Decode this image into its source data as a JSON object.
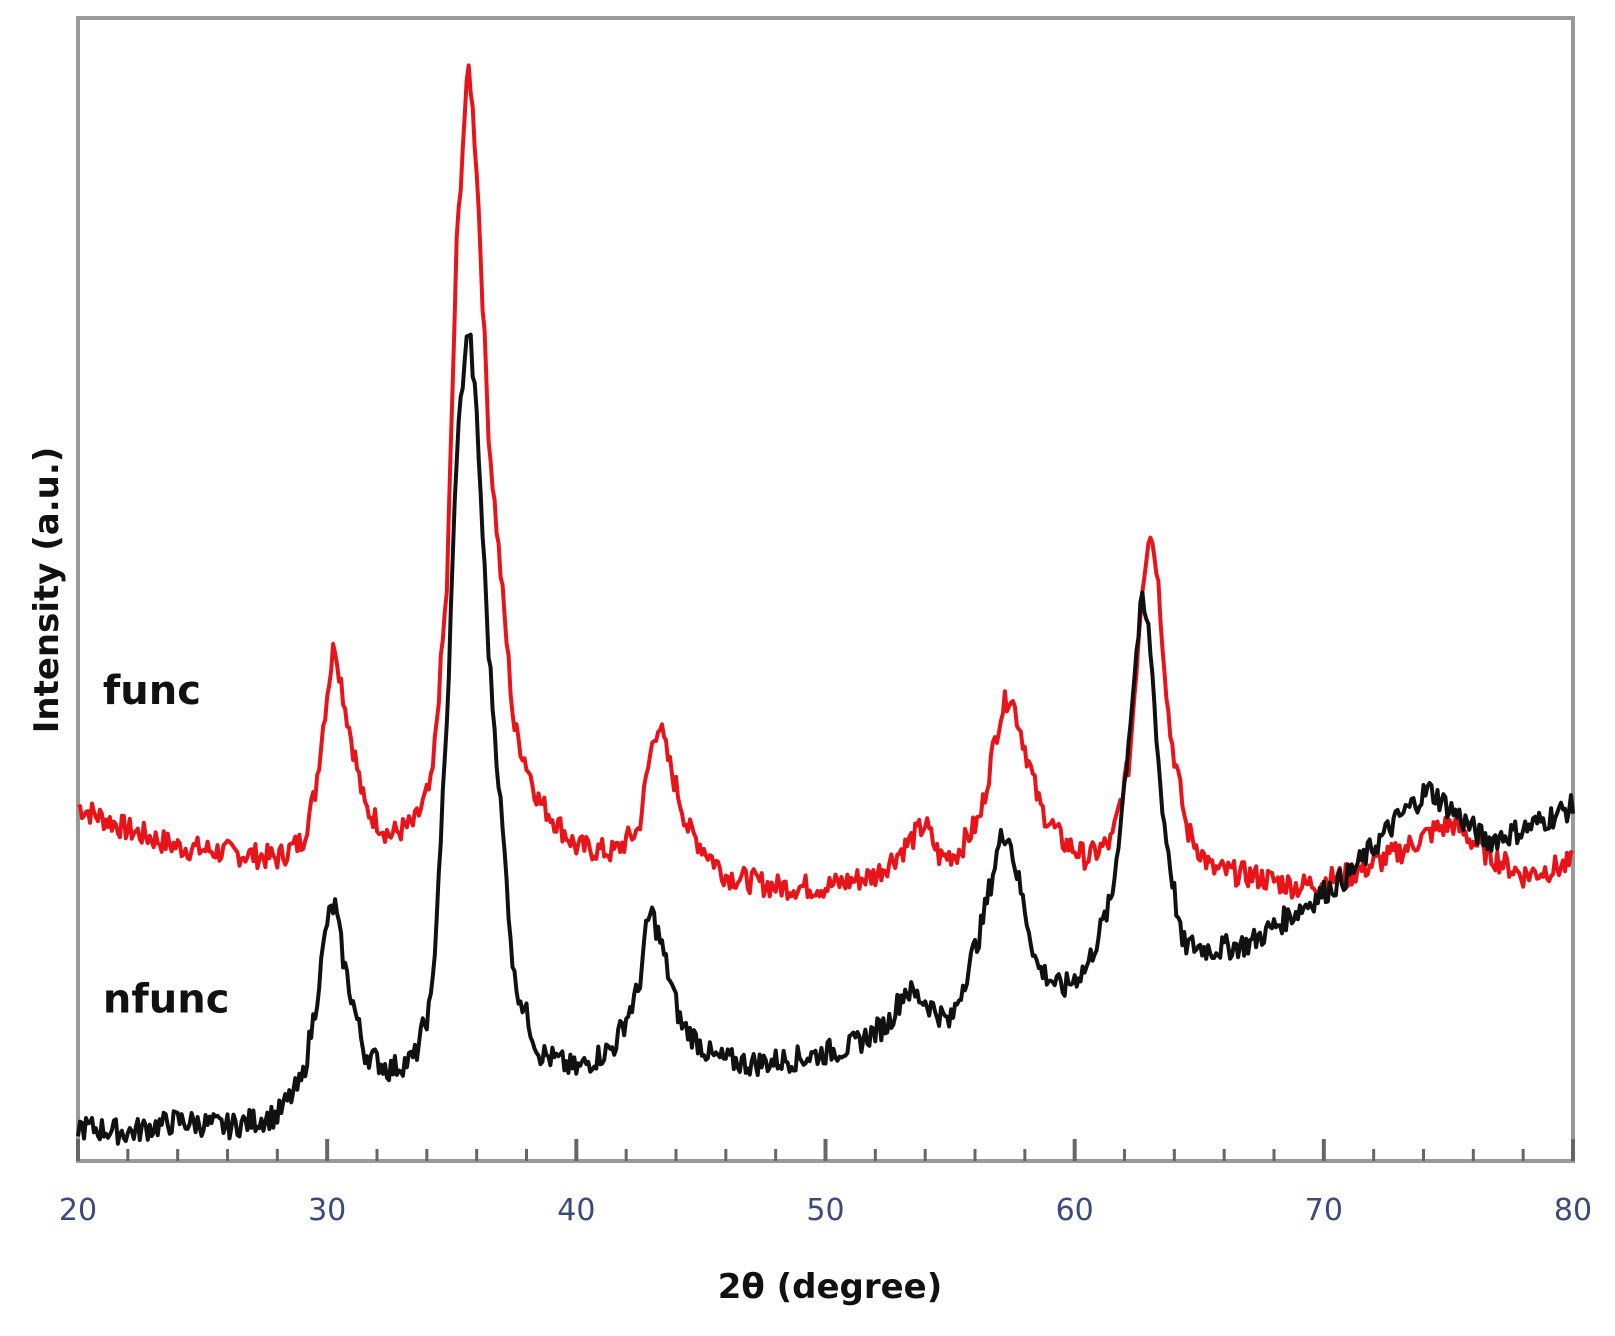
{
  "chart_data": {
    "type": "line",
    "title": "",
    "xlabel": "2θ (degree)",
    "ylabel": "Intensity (a.u.)",
    "xlim": [
      20,
      80
    ],
    "ylim": [
      0,
      100
    ],
    "x_ticks": [
      "20",
      "30",
      "40",
      "50",
      "60",
      "70",
      "80"
    ],
    "grid": false,
    "legend": "none",
    "series": [
      {
        "name": "func",
        "color": "#e8141a",
        "x": [
          20,
          22,
          24,
          26,
          28,
          29,
          29.5,
          30,
          30.3,
          30.7,
          31.5,
          32.5,
          33.5,
          34.2,
          34.8,
          35.2,
          35.5,
          35.7,
          36.0,
          36.5,
          37.5,
          38.5,
          40,
          41.5,
          42.5,
          43.0,
          43.3,
          43.7,
          44.5,
          46,
          48,
          50,
          52,
          53.2,
          54.0,
          54.6,
          55.3,
          56.2,
          57.0,
          57.4,
          57.8,
          58.6,
          59.5,
          60.5,
          61.5,
          62.2,
          62.7,
          63.0,
          63.3,
          63.8,
          64.5,
          65.5,
          67,
          69,
          71,
          73,
          74.5,
          75.2,
          76.5,
          78,
          80
        ],
        "values": [
          31.0,
          29.0,
          27.5,
          27.0,
          26.5,
          28.0,
          32.0,
          41.0,
          45.5,
          40.0,
          31.0,
          28.5,
          29.5,
          33.0,
          50.0,
          80.0,
          91.0,
          96.0,
          87.0,
          63.0,
          38.0,
          31.5,
          27.5,
          27.0,
          29.0,
          36.0,
          38.5,
          35.0,
          29.0,
          25.0,
          24.0,
          24.0,
          25.0,
          27.5,
          29.5,
          26.5,
          27.0,
          30.0,
          39.0,
          41.0,
          38.0,
          31.0,
          28.0,
          26.5,
          28.0,
          35.0,
          50.0,
          55.5,
          52.0,
          38.0,
          29.0,
          25.5,
          25.0,
          24.0,
          25.0,
          27.0,
          29.0,
          29.5,
          27.0,
          25.0,
          26.0
        ]
      },
      {
        "name": "nfunc",
        "color": "#111111",
        "x": [
          20,
          22,
          24,
          26,
          28,
          29,
          29.5,
          30,
          30.3,
          30.7,
          31.5,
          32.5,
          33.5,
          34.2,
          34.8,
          35.2,
          35.5,
          35.7,
          36.0,
          36.5,
          37.5,
          38.5,
          40,
          41.5,
          42.5,
          42.8,
          43.0,
          43.4,
          44.2,
          45.5,
          47,
          49,
          51,
          52.5,
          53.2,
          54.0,
          55.0,
          56.2,
          57.0,
          57.3,
          57.6,
          58.5,
          59.5,
          60.5,
          61.5,
          62.0,
          62.5,
          62.7,
          63.0,
          63.5,
          64.3,
          65.5,
          67,
          69,
          71,
          73,
          74.2,
          75,
          76.5,
          78,
          80
        ],
        "values": [
          3.0,
          2.5,
          3.5,
          3.0,
          4.0,
          7.0,
          13.0,
          21.0,
          22.5,
          17.0,
          9.5,
          8.0,
          9.0,
          14.0,
          38.0,
          62.0,
          70.0,
          73.0,
          65.0,
          44.0,
          16.0,
          9.5,
          8.0,
          10.0,
          15.0,
          20.0,
          22.0,
          19.0,
          12.0,
          9.0,
          8.5,
          9.0,
          10.0,
          12.0,
          15.0,
          14.0,
          12.0,
          20.0,
          28.0,
          29.0,
          26.0,
          17.0,
          15.0,
          17.0,
          23.0,
          33.0,
          45.0,
          49.0,
          46.0,
          31.0,
          19.0,
          18.5,
          19.0,
          22.0,
          25.0,
          30.0,
          32.5,
          31.0,
          28.0,
          29.0,
          31.0
        ]
      }
    ],
    "annotations": [
      {
        "text": "func",
        "x": 21,
        "y": 40
      },
      {
        "text": "nfunc",
        "x": 21,
        "y": 13
      }
    ]
  }
}
